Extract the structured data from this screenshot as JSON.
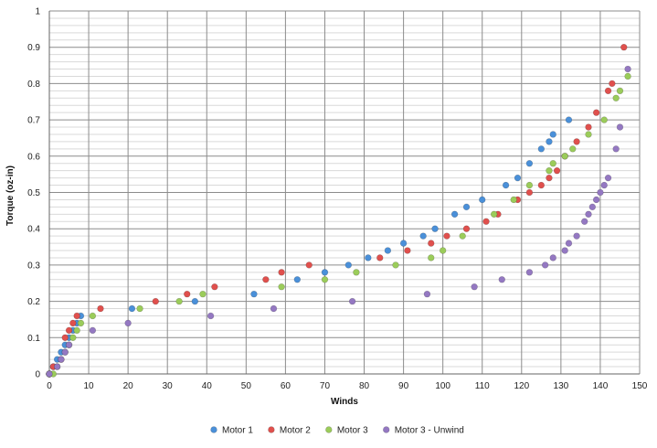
{
  "chart_data": {
    "type": "scatter",
    "title": "",
    "xlabel": "Winds",
    "ylabel": "Torque (oz-in)",
    "xlim": [
      0,
      150
    ],
    "ylim": [
      0,
      1
    ],
    "x_ticks": [
      0,
      10,
      20,
      30,
      40,
      50,
      60,
      70,
      80,
      90,
      100,
      110,
      120,
      130,
      140,
      150
    ],
    "y_ticks": [
      0,
      0.1,
      0.2,
      0.3,
      0.4,
      0.5,
      0.6,
      0.7,
      0.8,
      0.9,
      1
    ],
    "grid": "major and minor horizontal, major vertical",
    "legend_position": "bottom",
    "series": [
      {
        "name": "Motor 1",
        "color": "#4a90d9",
        "points": [
          [
            0,
            0
          ],
          [
            1,
            0.02
          ],
          [
            2,
            0.04
          ],
          [
            3,
            0.06
          ],
          [
            4,
            0.08
          ],
          [
            5,
            0.1
          ],
          [
            6,
            0.12
          ],
          [
            7,
            0.14
          ],
          [
            8,
            0.16
          ],
          [
            21,
            0.18
          ],
          [
            37,
            0.2
          ],
          [
            52,
            0.22
          ],
          [
            63,
            0.26
          ],
          [
            70,
            0.28
          ],
          [
            76,
            0.3
          ],
          [
            81,
            0.32
          ],
          [
            86,
            0.34
          ],
          [
            90,
            0.36
          ],
          [
            95,
            0.38
          ],
          [
            98,
            0.4
          ],
          [
            103,
            0.44
          ],
          [
            106,
            0.46
          ],
          [
            110,
            0.48
          ],
          [
            116,
            0.52
          ],
          [
            119,
            0.54
          ],
          [
            122,
            0.58
          ],
          [
            125,
            0.62
          ],
          [
            127,
            0.64
          ],
          [
            128,
            0.66
          ],
          [
            132,
            0.7
          ]
        ]
      },
      {
        "name": "Motor 2",
        "color": "#e0504d",
        "points": [
          [
            0,
            0
          ],
          [
            1,
            0.02
          ],
          [
            3,
            0.04
          ],
          [
            4,
            0.1
          ],
          [
            5,
            0.12
          ],
          [
            6,
            0.14
          ],
          [
            7,
            0.16
          ],
          [
            13,
            0.18
          ],
          [
            27,
            0.2
          ],
          [
            35,
            0.22
          ],
          [
            42,
            0.24
          ],
          [
            55,
            0.26
          ],
          [
            59,
            0.28
          ],
          [
            66,
            0.3
          ],
          [
            84,
            0.32
          ],
          [
            91,
            0.34
          ],
          [
            97,
            0.36
          ],
          [
            101,
            0.38
          ],
          [
            106,
            0.4
          ],
          [
            111,
            0.42
          ],
          [
            114,
            0.44
          ],
          [
            119,
            0.48
          ],
          [
            122,
            0.5
          ],
          [
            125,
            0.52
          ],
          [
            127,
            0.54
          ],
          [
            129,
            0.56
          ],
          [
            131,
            0.6
          ],
          [
            134,
            0.64
          ],
          [
            137,
            0.68
          ],
          [
            139,
            0.72
          ],
          [
            142,
            0.78
          ],
          [
            143,
            0.8
          ],
          [
            146,
            0.9
          ]
        ]
      },
      {
        "name": "Motor 3",
        "color": "#9bcc5a",
        "points": [
          [
            0,
            0
          ],
          [
            1,
            0
          ],
          [
            2,
            0.02
          ],
          [
            4,
            0.06
          ],
          [
            5,
            0.08
          ],
          [
            6,
            0.1
          ],
          [
            7,
            0.12
          ],
          [
            8,
            0.14
          ],
          [
            11,
            0.16
          ],
          [
            23,
            0.18
          ],
          [
            33,
            0.2
          ],
          [
            39,
            0.22
          ],
          [
            59,
            0.24
          ],
          [
            70,
            0.26
          ],
          [
            78,
            0.28
          ],
          [
            88,
            0.3
          ],
          [
            97,
            0.32
          ],
          [
            100,
            0.34
          ],
          [
            105,
            0.38
          ],
          [
            113,
            0.44
          ],
          [
            118,
            0.48
          ],
          [
            122,
            0.52
          ],
          [
            127,
            0.56
          ],
          [
            128,
            0.58
          ],
          [
            131,
            0.6
          ],
          [
            133,
            0.62
          ],
          [
            137,
            0.66
          ],
          [
            141,
            0.7
          ],
          [
            144,
            0.76
          ],
          [
            145,
            0.78
          ],
          [
            147,
            0.82
          ]
        ]
      },
      {
        "name": "Motor 3 - Unwind",
        "color": "#9478c2",
        "points": [
          [
            0,
            0
          ],
          [
            2,
            0.02
          ],
          [
            3,
            0.04
          ],
          [
            4,
            0.06
          ],
          [
            5,
            0.08
          ],
          [
            11,
            0.12
          ],
          [
            20,
            0.14
          ],
          [
            41,
            0.16
          ],
          [
            57,
            0.18
          ],
          [
            77,
            0.2
          ],
          [
            96,
            0.22
          ],
          [
            108,
            0.24
          ],
          [
            115,
            0.26
          ],
          [
            122,
            0.28
          ],
          [
            126,
            0.3
          ],
          [
            128,
            0.32
          ],
          [
            131,
            0.34
          ],
          [
            132,
            0.36
          ],
          [
            134,
            0.38
          ],
          [
            136,
            0.42
          ],
          [
            137,
            0.44
          ],
          [
            138,
            0.46
          ],
          [
            139,
            0.48
          ],
          [
            140,
            0.5
          ],
          [
            141,
            0.52
          ],
          [
            142,
            0.54
          ],
          [
            144,
            0.62
          ],
          [
            145,
            0.68
          ],
          [
            147,
            0.84
          ]
        ]
      }
    ]
  }
}
